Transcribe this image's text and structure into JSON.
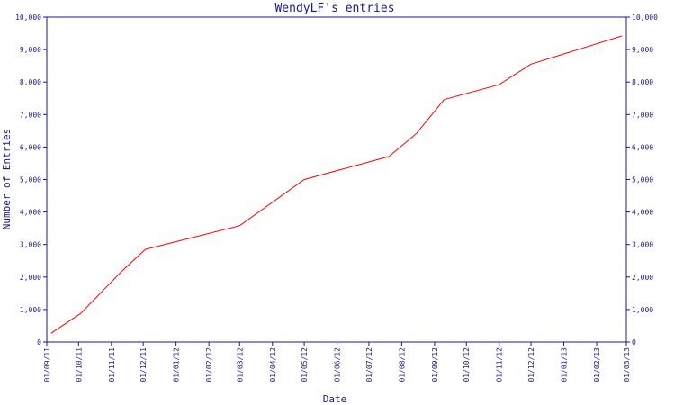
{
  "chart_data": {
    "type": "line",
    "title": "WendyLF's entries",
    "xlabel": "Date",
    "ylabel": "Number of Entries",
    "ylim": [
      0,
      10000
    ],
    "yticks": [
      0,
      1000,
      2000,
      3000,
      4000,
      5000,
      6000,
      7000,
      8000,
      9000,
      10000
    ],
    "ytick_labels": [
      "0",
      "1,000",
      "2,000",
      "3,000",
      "4,000",
      "5,000",
      "6,000",
      "7,000",
      "8,000",
      "9,000",
      "10,000"
    ],
    "y_axis_sides": "left-and-right",
    "xlim": [
      "2011-09-01",
      "2013-03-01"
    ],
    "xtick_labels": [
      "01/09/11",
      "01/10/11",
      "01/11/11",
      "01/12/11",
      "01/01/12",
      "01/02/12",
      "01/03/12",
      "01/04/12",
      "01/05/12",
      "01/06/12",
      "01/07/12",
      "01/08/12",
      "01/09/12",
      "01/10/12",
      "01/11/12",
      "01/12/12",
      "01/01/13",
      "01/02/13",
      "01/03/13"
    ],
    "grid": false,
    "colors": {
      "line": "#ff0000",
      "axis": "#1a1a8c",
      "text": "#1a1a8c"
    },
    "series": [
      {
        "x": [
          "2011-09-05",
          "2011-10-03",
          "2011-11-10",
          "2011-12-03",
          "2012-03-01",
          "2012-05-01",
          "2012-07-20",
          "2012-08-15",
          "2012-09-10",
          "2012-11-01",
          "2012-12-01",
          "2013-02-25"
        ],
        "values": [
          270,
          880,
          2150,
          2850,
          3580,
          5000,
          5710,
          6420,
          7460,
          7920,
          8550,
          9420
        ]
      }
    ]
  }
}
